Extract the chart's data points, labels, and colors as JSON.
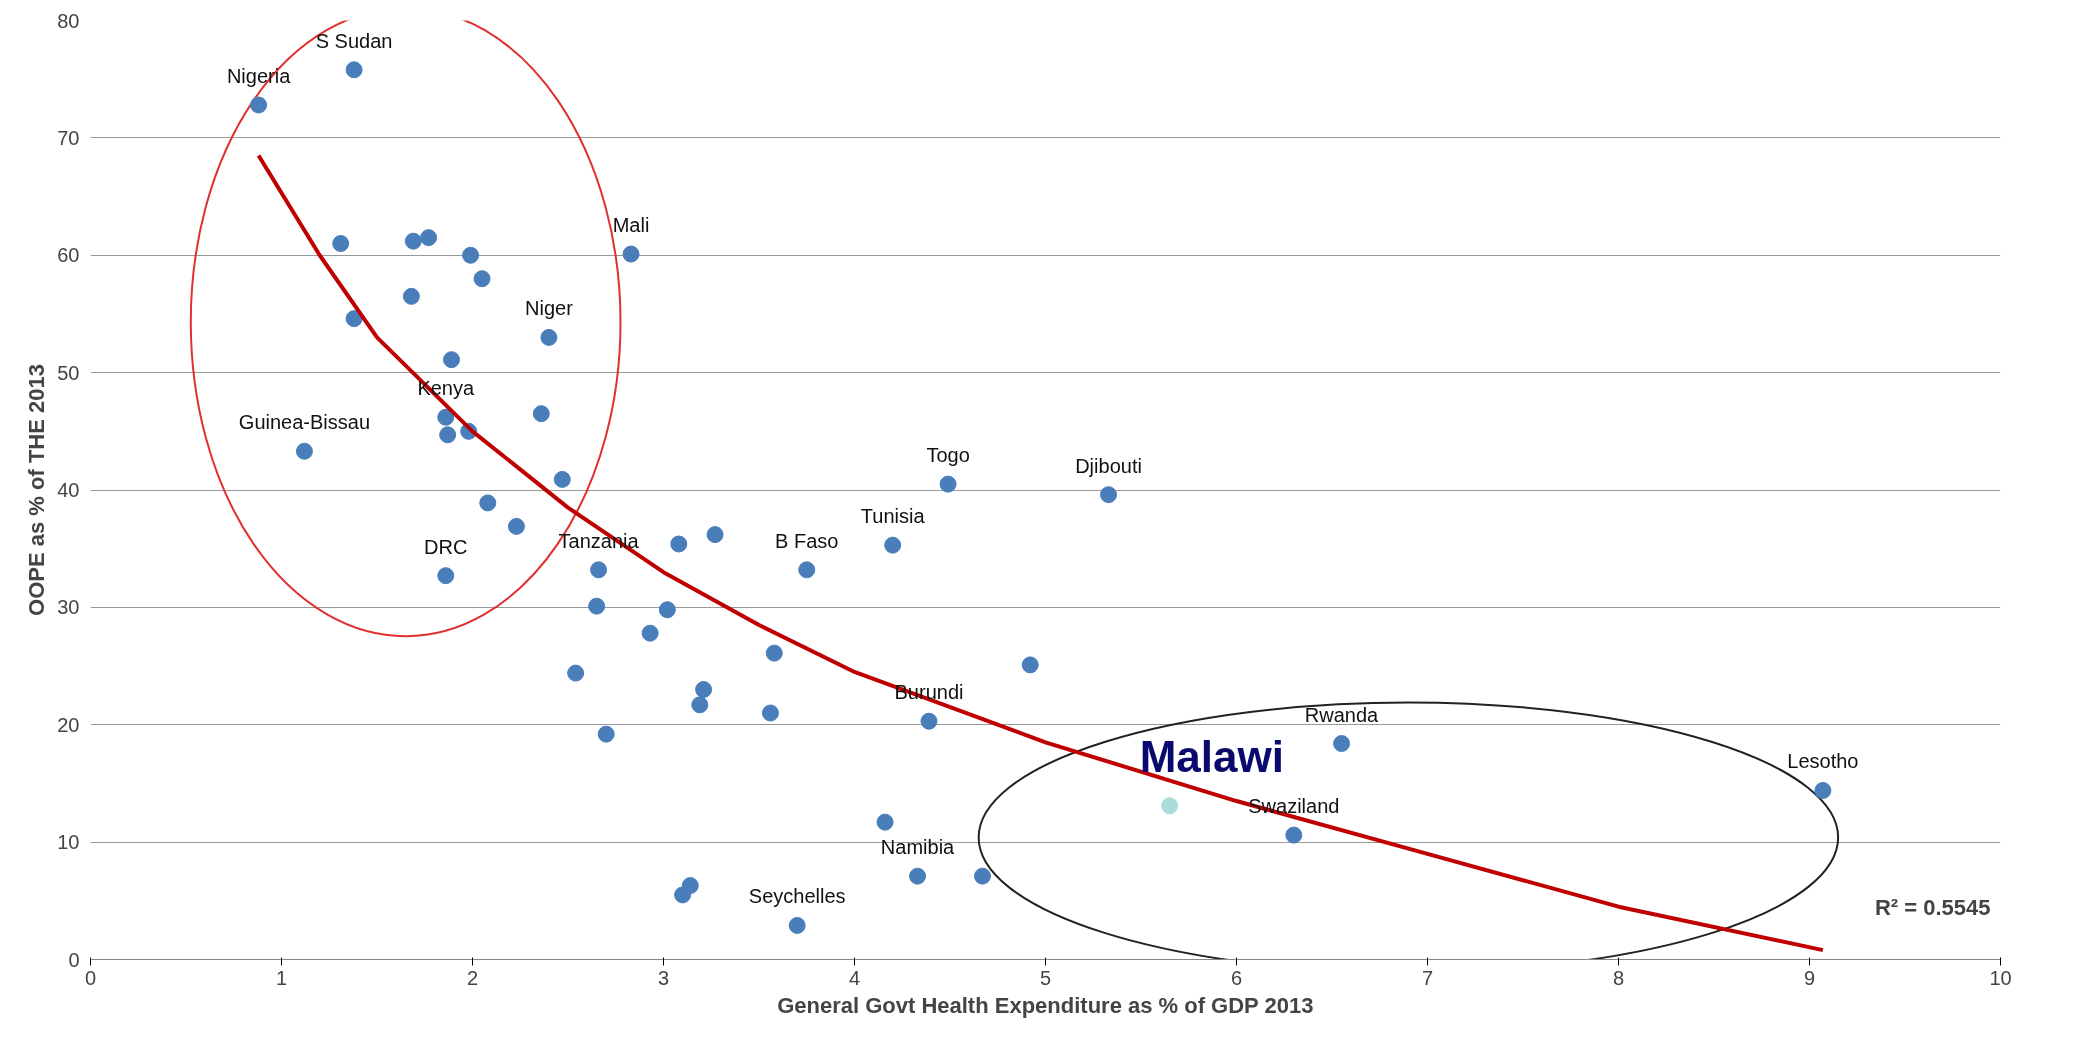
{
  "chart_data": {
    "type": "scatter",
    "xlabel": "General Govt Health Expenditure as % of GDP 2013",
    "ylabel": "OOPE as % of THE 2013",
    "xlim": [
      0,
      10
    ],
    "ylim": [
      0,
      80
    ],
    "xticks": [
      0,
      1,
      2,
      3,
      4,
      5,
      6,
      7,
      8,
      9,
      10
    ],
    "yticks": [
      0,
      10,
      20,
      30,
      40,
      50,
      60,
      70,
      80
    ],
    "grid": "y",
    "marker": "circle",
    "series": [
      {
        "color": "#4a7ebb",
        "x": [
          0.88,
          1.38,
          1.31,
          1.69,
          1.77,
          1.99,
          2.05,
          2.83,
          1.68,
          1.38,
          2.4,
          1.89,
          1.12,
          1.86,
          1.87,
          1.98,
          2.36,
          2.47,
          2.08,
          2.23,
          1.86,
          2.66,
          2.65,
          3.08,
          3.27,
          3.75,
          4.2,
          4.49,
          5.33,
          3.02,
          2.93,
          2.54,
          3.21,
          3.19,
          2.7,
          3.58,
          3.56,
          4.92,
          4.39,
          4.16,
          4.33,
          4.67,
          3.14,
          3.1,
          3.7,
          6.55,
          6.3,
          9.07
        ],
        "values": [
          72.8,
          75.8,
          61.0,
          61.2,
          61.5,
          60.0,
          58.0,
          60.1,
          56.5,
          54.6,
          53.0,
          51.1,
          43.3,
          46.2,
          44.7,
          45.0,
          46.5,
          40.9,
          38.9,
          36.9,
          32.7,
          33.2,
          30.1,
          35.4,
          36.2,
          33.2,
          35.3,
          40.5,
          39.6,
          29.8,
          27.8,
          24.4,
          23.0,
          21.7,
          19.2,
          26.1,
          21.0,
          25.1,
          20.3,
          11.7,
          7.1,
          7.1,
          6.3,
          5.5,
          2.9,
          18.4,
          10.6,
          14.4
        ]
      },
      {
        "name": "Malawi",
        "color": "#a9dcdc",
        "x": [
          5.65
        ],
        "values": [
          13.1
        ]
      },
      {
        "type": "line",
        "marker": "none",
        "color": "#c00000",
        "x": [
          0.88,
          1.2,
          1.5,
          2,
          2.5,
          3,
          3.5,
          4,
          5,
          6,
          7,
          8,
          9.07
        ],
        "values": [
          68.5,
          60,
          53,
          45,
          38.5,
          33,
          28.5,
          24.5,
          18.5,
          13.5,
          9,
          4.5,
          0.8
        ]
      }
    ],
    "annotations": [
      {
        "text": "Nigeria",
        "x": 0.88,
        "y": 72.8
      },
      {
        "text": "S Sudan",
        "x": 1.38,
        "y": 75.8
      },
      {
        "text": "Mali",
        "x": 2.83,
        "y": 60.1
      },
      {
        "text": "Niger",
        "x": 2.4,
        "y": 53.0
      },
      {
        "text": "Guinea-Bissau",
        "x": 1.12,
        "y": 43.3
      },
      {
        "text": "Kenya",
        "x": 1.86,
        "y": 46.2
      },
      {
        "text": "DRC",
        "x": 1.86,
        "y": 32.7
      },
      {
        "text": "Tanzania",
        "x": 2.66,
        "y": 33.2
      },
      {
        "text": "B Faso",
        "x": 3.75,
        "y": 33.2
      },
      {
        "text": "Tunisia",
        "x": 4.2,
        "y": 35.3
      },
      {
        "text": "Togo",
        "x": 4.49,
        "y": 40.5
      },
      {
        "text": "Djibouti",
        "x": 5.33,
        "y": 39.6
      },
      {
        "text": "Burundi",
        "x": 4.39,
        "y": 20.3
      },
      {
        "text": "Namibia",
        "x": 4.33,
        "y": 7.1
      },
      {
        "text": "Seychelles",
        "x": 3.7,
        "y": 2.9
      },
      {
        "text": "Rwanda",
        "x": 6.55,
        "y": 18.4
      },
      {
        "text": "Swaziland",
        "x": 6.3,
        "y": 10.6
      },
      {
        "text": "Lesotho",
        "x": 9.07,
        "y": 14.4
      },
      "R² = 0.5545"
    ]
  }
}
